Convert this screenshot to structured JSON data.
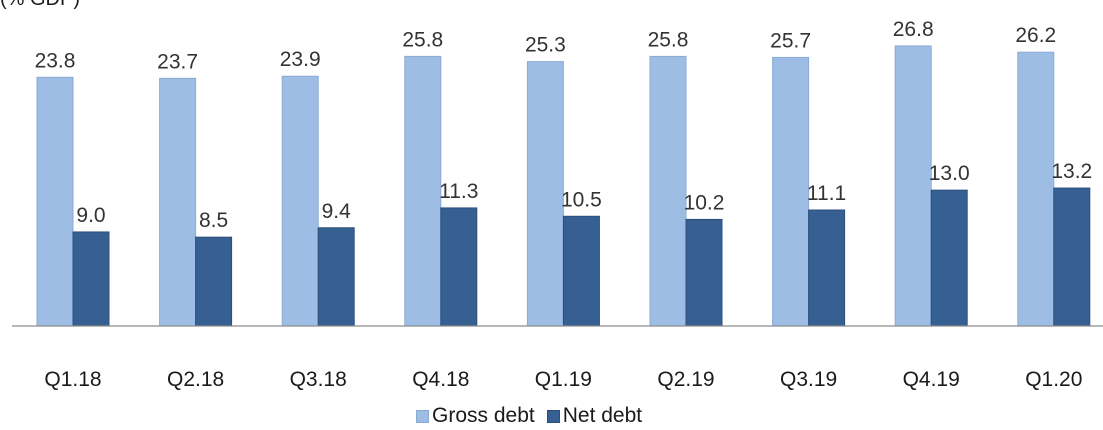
{
  "chart_data": {
    "type": "bar",
    "unit_label": "(% GDP)",
    "categories": [
      "Q1.18",
      "Q2.18",
      "Q3.18",
      "Q4.18",
      "Q1.19",
      "Q2.19",
      "Q3.19",
      "Q4.19",
      "Q1.20"
    ],
    "series": [
      {
        "name": "Gross debt",
        "values": [
          23.8,
          23.7,
          23.9,
          25.8,
          25.3,
          25.8,
          25.7,
          26.8,
          26.2
        ],
        "labels": [
          "23.8",
          "23.7",
          "23.9",
          "25.8",
          "25.3",
          "25.8",
          "25.7",
          "26.8",
          "26.2"
        ],
        "color": "#9dbde4"
      },
      {
        "name": "Net debt",
        "values": [
          9.0,
          8.5,
          9.4,
          11.3,
          10.5,
          10.2,
          11.1,
          13.0,
          13.2
        ],
        "labels": [
          "9.0",
          "8.5",
          "9.4",
          "11.3",
          "10.5",
          "10.2",
          "11.1",
          "13.0",
          "13.2"
        ],
        "color": "#366092"
      }
    ],
    "ylim": [
      0,
      30
    ],
    "grid": false,
    "legend_position": "bottom"
  }
}
